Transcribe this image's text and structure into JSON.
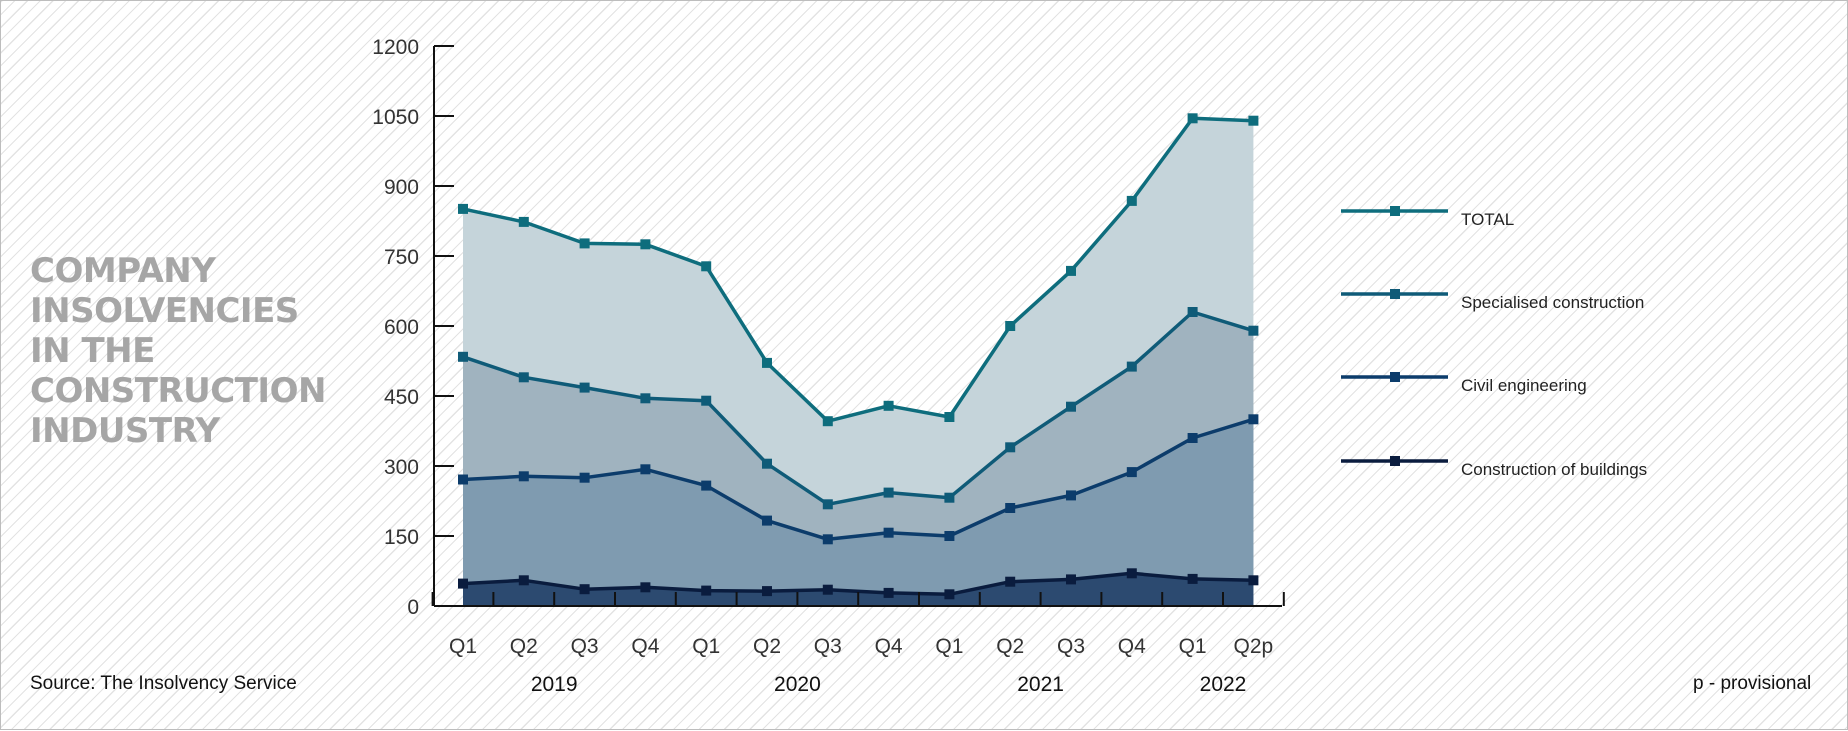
{
  "title_lines": [
    "COMPANY",
    "INSOLVENCIES",
    "IN THE",
    "CONSTRUCTION",
    "INDUSTRY"
  ],
  "source": "Source: The Insolvency Service",
  "footnote": "p - provisional",
  "chart_data": {
    "type": "area",
    "title": "COMPANY INSOLVENCIES IN THE CONSTRUCTION INDUSTRY",
    "stacked": true,
    "categories": [
      "Q1",
      "Q2",
      "Q3",
      "Q4",
      "Q1",
      "Q2",
      "Q3",
      "Q4",
      "Q1",
      "Q2",
      "Q3",
      "Q4",
      "Q1",
      "Q2p"
    ],
    "year_labels": [
      "2019",
      "2020",
      "2021",
      "2022"
    ],
    "ylim": [
      0,
      1200
    ],
    "yticks": [
      0,
      150,
      300,
      450,
      600,
      750,
      900,
      1050,
      1200
    ],
    "legend_position": "right",
    "series": [
      {
        "name": "TOTAL",
        "values": [
          851,
          823,
          777,
          775,
          728,
          521,
          396,
          429,
          405,
          600,
          718,
          868,
          1045,
          1040
        ],
        "line_color": "#0e6d7d",
        "fill_color": "#c5d4da"
      },
      {
        "name": "Specialised construction",
        "values": [
          534,
          490,
          468,
          445,
          440,
          305,
          218,
          243,
          232,
          340,
          427,
          513,
          630,
          590
        ],
        "line_color": "#0f5b78",
        "fill_color": "#a0b3bf"
      },
      {
        "name": "Civil engineering",
        "values": [
          271,
          278,
          275,
          293,
          258,
          183,
          143,
          157,
          150,
          210,
          237,
          287,
          360,
          400
        ],
        "line_color": "#0c3c6b",
        "fill_color": "#7f9bb0"
      },
      {
        "name": "Construction of buildings",
        "values": [
          48,
          55,
          36,
          40,
          33,
          32,
          35,
          28,
          25,
          52,
          57,
          70,
          58,
          55
        ],
        "line_color": "#0a1c3e",
        "fill_color": "#2c4a70"
      }
    ]
  }
}
